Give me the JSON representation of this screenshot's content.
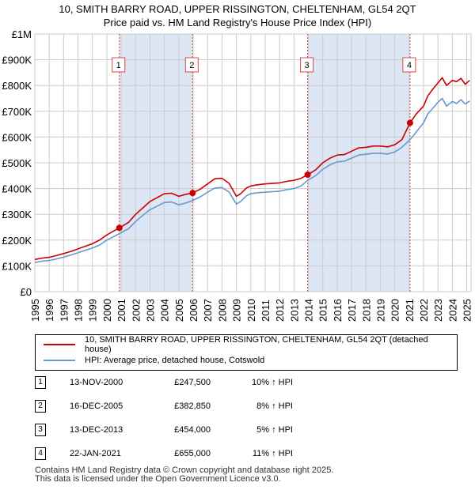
{
  "title": {
    "line1": "10, SMITH BARRY ROAD, UPPER RISSINGTON, CHELTENHAM, GL54 2QT",
    "line2": "Price paid vs. HM Land Registry's House Price Index (HPI)"
  },
  "colors": {
    "property": "#cc0000",
    "hpi": "#6699cc",
    "shade": "#dde6f5",
    "grid": "#cccccc",
    "marker_line": "#dd4444"
  },
  "chart_data": {
    "type": "line",
    "title": "10, SMITH BARRY ROAD, UPPER RISSINGTON, CHELTENHAM, GL54 2QT",
    "subtitle": "Price paid vs. HM Land Registry's House Price Index (HPI)",
    "xlabel": "",
    "ylabel": "",
    "xlim": [
      1995.0,
      2025.3
    ],
    "ylim": [
      0,
      1000000
    ],
    "grid": true,
    "y_ticks": [
      0,
      100000,
      200000,
      300000,
      400000,
      500000,
      600000,
      700000,
      800000,
      900000,
      1000000
    ],
    "y_tick_labels": [
      "£0",
      "£100K",
      "£200K",
      "£300K",
      "£400K",
      "£500K",
      "£600K",
      "£700K",
      "£800K",
      "£900K",
      "£1M"
    ],
    "x_ticks": [
      1995,
      1996,
      1997,
      1998,
      1999,
      2000,
      2001,
      2002,
      2003,
      2004,
      2005,
      2006,
      2007,
      2008,
      2009,
      2010,
      2011,
      2012,
      2013,
      2014,
      2015,
      2016,
      2017,
      2018,
      2019,
      2020,
      2021,
      2022,
      2023,
      2024,
      2025
    ],
    "x_tick_labels": [
      "1995",
      "1996",
      "1997",
      "1998",
      "1999",
      "2000",
      "2001",
      "2002",
      "2003",
      "2004",
      "2005",
      "2006",
      "2007",
      "2008",
      "2009",
      "2010",
      "2011",
      "2012",
      "2013",
      "2014",
      "2015",
      "2016",
      "2017",
      "2018",
      "2019",
      "2020",
      "2021",
      "2022",
      "2023",
      "2024",
      "2025"
    ],
    "shaded_ranges": [
      [
        2000.87,
        2005.96
      ],
      [
        2013.95,
        2021.06
      ]
    ],
    "series": [
      {
        "name": "10, SMITH BARRY ROAD, UPPER RISSINGTON, CHELTENHAM, GL54 2QT (detached house)",
        "x": [
          1995.0,
          1995.5,
          1996.0,
          1996.5,
          1997.0,
          1997.5,
          1998.0,
          1998.5,
          1999.0,
          1999.5,
          2000.0,
          2000.5,
          2000.87,
          2001.5,
          2002.0,
          2002.5,
          2003.0,
          2003.5,
          2004.0,
          2004.5,
          2005.0,
          2005.5,
          2005.96,
          2006.5,
          2007.0,
          2007.5,
          2008.0,
          2008.5,
          2009.0,
          2009.3,
          2009.7,
          2010.0,
          2010.5,
          2011.0,
          2011.5,
          2012.0,
          2012.5,
          2013.0,
          2013.5,
          2013.95,
          2014.5,
          2015.0,
          2015.5,
          2016.0,
          2016.5,
          2017.0,
          2017.5,
          2018.0,
          2018.5,
          2019.0,
          2019.5,
          2020.0,
          2020.5,
          2021.06,
          2021.5,
          2022.0,
          2022.3,
          2022.7,
          2023.0,
          2023.3,
          2023.6,
          2024.0,
          2024.3,
          2024.6,
          2024.9,
          2025.2
        ],
        "values": [
          125000,
          130000,
          133000,
          140000,
          148000,
          156000,
          166000,
          176000,
          186000,
          200000,
          220000,
          236000,
          247500,
          268000,
          300000,
          325000,
          350000,
          365000,
          380000,
          382000,
          370000,
          378000,
          382850,
          398000,
          418000,
          438000,
          440000,
          420000,
          370000,
          380000,
          402000,
          410000,
          415000,
          418000,
          420000,
          422000,
          428000,
          432000,
          440000,
          454000,
          472000,
          500000,
          518000,
          530000,
          532000,
          545000,
          558000,
          560000,
          565000,
          565000,
          562000,
          570000,
          590000,
          655000,
          690000,
          720000,
          760000,
          790000,
          810000,
          830000,
          800000,
          820000,
          815000,
          828000,
          805000,
          820000
        ]
      },
      {
        "name": "HPI: Average price, detached house, Cotswold",
        "x": [
          1995.0,
          1995.5,
          1996.0,
          1996.5,
          1997.0,
          1997.5,
          1998.0,
          1998.5,
          1999.0,
          1999.5,
          2000.0,
          2000.5,
          2000.87,
          2001.5,
          2002.0,
          2002.5,
          2003.0,
          2003.5,
          2004.0,
          2004.5,
          2005.0,
          2005.5,
          2005.96,
          2006.5,
          2007.0,
          2007.5,
          2008.0,
          2008.5,
          2009.0,
          2009.3,
          2009.7,
          2010.0,
          2010.5,
          2011.0,
          2011.5,
          2012.0,
          2012.5,
          2013.0,
          2013.5,
          2013.95,
          2014.5,
          2015.0,
          2015.5,
          2016.0,
          2016.5,
          2017.0,
          2017.5,
          2018.0,
          2018.5,
          2019.0,
          2019.5,
          2020.0,
          2020.5,
          2021.06,
          2021.5,
          2022.0,
          2022.3,
          2022.7,
          2023.0,
          2023.3,
          2023.6,
          2024.0,
          2024.3,
          2024.6,
          2024.9,
          2025.2
        ],
        "values": [
          113000,
          118000,
          121000,
          127000,
          134000,
          142000,
          151000,
          160000,
          169000,
          181000,
          200000,
          214000,
          225000,
          244000,
          272000,
          296000,
          318000,
          332000,
          346000,
          348000,
          337000,
          344000,
          354000,
          368000,
          386000,
          402000,
          404000,
          386000,
          340000,
          350000,
          372000,
          380000,
          384000,
          386000,
          388000,
          390000,
          396000,
          400000,
          410000,
          432000,
          450000,
          475000,
          492000,
          504000,
          506000,
          518000,
          530000,
          533000,
          537000,
          537000,
          534000,
          542000,
          560000,
          590000,
          620000,
          655000,
          690000,
          715000,
          735000,
          750000,
          720000,
          738000,
          730000,
          745000,
          728000,
          740000
        ]
      }
    ],
    "sale_markers": [
      {
        "label": "1",
        "x": 2000.87,
        "value": 247500
      },
      {
        "label": "2",
        "x": 2005.96,
        "value": 382850
      },
      {
        "label": "3",
        "x": 2013.95,
        "value": 454000
      },
      {
        "label": "4",
        "x": 2021.06,
        "value": 655000
      }
    ]
  },
  "legend": {
    "property_label": "10, SMITH BARRY ROAD, UPPER RISSINGTON, CHELTENHAM, GL54 2QT (detached house)",
    "hpi_label": "HPI: Average price, detached house, Cotswold"
  },
  "sales": [
    {
      "num": "1",
      "date": "13-NOV-2000",
      "price": "£247,500",
      "hpi": "10% ↑ HPI"
    },
    {
      "num": "2",
      "date": "16-DEC-2005",
      "price": "£382,850",
      "hpi": "8% ↑ HPI"
    },
    {
      "num": "3",
      "date": "13-DEC-2013",
      "price": "£454,000",
      "hpi": "5% ↑ HPI"
    },
    {
      "num": "4",
      "date": "22-JAN-2021",
      "price": "£655,000",
      "hpi": "11% ↑ HPI"
    }
  ],
  "footer": {
    "line1": "Contains HM Land Registry data © Crown copyright and database right 2025.",
    "line2": "This data is licensed under the Open Government Licence v3.0."
  }
}
